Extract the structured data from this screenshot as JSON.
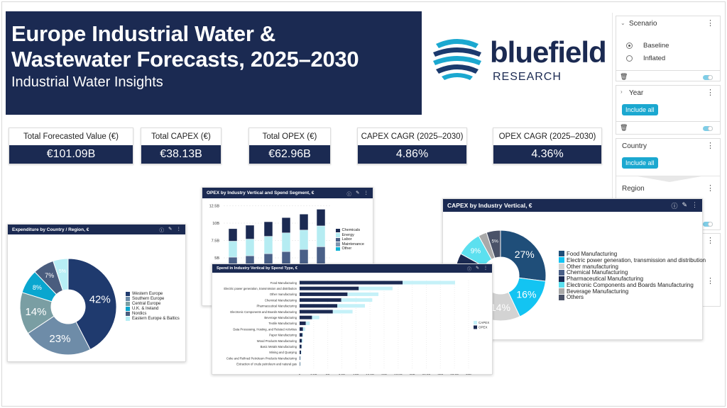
{
  "header": {
    "title_line1": "Europe Industrial Water &",
    "title_line2": "Wastewater Forecasts, 2025–2030",
    "subtitle": "Industrial Water Insights"
  },
  "logo": {
    "word": "bluefield",
    "sub": "RESEARCH"
  },
  "kpis": [
    {
      "label": "Total Forecasted Value (€)",
      "value": "€101.09B"
    },
    {
      "label": "Total CAPEX (€)",
      "value": "€38.13B"
    },
    {
      "label": "Total OPEX (€)",
      "value": "€62.96B"
    },
    {
      "label": "CAPEX CAGR (2025–2030)",
      "value": "4.86%"
    },
    {
      "label": "OPEX CAGR (2025–2030)",
      "value": "4.36%"
    }
  ],
  "filters": {
    "scenario": {
      "title": "Scenario",
      "options": [
        "Baseline",
        "Inflated"
      ],
      "selected": "Baseline"
    },
    "year": {
      "title": "Year",
      "button": "Include all"
    },
    "country": {
      "title": "Country",
      "button": "Include all"
    },
    "region": {
      "title": "Region"
    }
  },
  "colors": {
    "navy": "#1b2a52",
    "accent": "#1ba8d0"
  },
  "chart_data": [
    {
      "id": "expenditure",
      "type": "pie",
      "title": "Expenditure by Country / Region, €",
      "categories": [
        "Western Europe",
        "Southern Europe",
        "Central Europe",
        "U.K. & Ireland",
        "Nordics",
        "Eastern Europe & Baltics"
      ],
      "values": [
        42,
        23,
        14,
        8,
        7,
        5
      ],
      "labels": [
        "42%",
        "23%",
        "14%",
        "8%",
        "7%",
        "5%"
      ],
      "colors": [
        "#1f3a6e",
        "#6e8ca8",
        "#7a9ea3",
        "#0aa6cf",
        "#4a5d7e",
        "#b7eef5"
      ],
      "legend": "right"
    },
    {
      "id": "opex",
      "type": "bar",
      "stacked": true,
      "title": "OPEX by Industry Vertical and Spend Segment, €",
      "ytick_labels": [
        "5B",
        "7.5B",
        "10B",
        "12.5B"
      ],
      "ylim": [
        0,
        12.5
      ],
      "series": [
        {
          "name": "Other",
          "values": [
            1.0,
            1.0,
            1.0,
            1.0,
            1.0,
            1.0
          ],
          "color": "#10b3d6"
        },
        {
          "name": "Maintenance",
          "values": [
            2.0,
            2.0,
            2.0,
            2.0,
            2.0,
            2.0
          ],
          "color": "#7d95b0"
        },
        {
          "name": "Labor",
          "values": [
            2.1,
            2.3,
            2.6,
            2.9,
            3.2,
            3.6
          ],
          "color": "#4a6088"
        },
        {
          "name": "Energy",
          "values": [
            2.3,
            2.4,
            2.5,
            2.7,
            2.8,
            3.0
          ],
          "color": "#b5ecf2"
        },
        {
          "name": "Chemicals",
          "values": [
            1.8,
            2.0,
            2.1,
            2.2,
            2.3,
            2.4
          ],
          "color": "#1b2a52"
        }
      ],
      "legend_order": [
        "Chemicals",
        "Energy",
        "Labor",
        "Maintenance",
        "Other"
      ],
      "legend": "right"
    },
    {
      "id": "spend",
      "type": "bar",
      "orientation": "horizontal",
      "stacked": true,
      "title": "Spend in Industry Vertical by Spend Type, €",
      "categories": [
        "Food Manufacturing",
        "Electric power generation, transmission and distribution",
        "Other manufacturing",
        "Chemical Manufacturing",
        "Pharmaceutical Manufacturing",
        "Electronic Components and Boards Manufacturing",
        "Beverage Manufacturing",
        "Textile Manufacturing",
        "Data Processing, Hosting, and Related Activities",
        "Paper Manufacturing",
        "Wood Products Manufacturing",
        "Basic Metals Manufacturing",
        "Mining and Quarying",
        "Coke and Refined Petroleum Products Manufacturing",
        "Extraction of crude petroleum and natural gas"
      ],
      "series": [
        {
          "name": "OPEX",
          "values": [
            18.3,
            10.5,
            8.5,
            7.4,
            6.7,
            5.9,
            2.2,
            1.1,
            0.6,
            0.5,
            0.4,
            0.35,
            0.25,
            0.1,
            0.08
          ],
          "color": "#1b2a52"
        },
        {
          "name": "CAPEX",
          "values": [
            9.3,
            6.0,
            5.5,
            5.5,
            4.9,
            3.5,
            1.3,
            0.7,
            0.4,
            0.15,
            0.2,
            0.05,
            0.03,
            0.02,
            0.02
          ],
          "color": "#c5f1f8"
        }
      ],
      "xtick_labels": [
        "0",
        "2.5B",
        "5B",
        "7.5B",
        "10B",
        "12.5B",
        "15B",
        "17.5B",
        "20B",
        "22.5B",
        "25B",
        "27.5B",
        "30B"
      ],
      "xlim": [
        0,
        30
      ],
      "legend_order": [
        "CAPEX",
        "OPEX"
      ],
      "legend": "right",
      "grid": true
    },
    {
      "id": "capex",
      "type": "pie",
      "title": "CAPEX by Industry Vertical, €",
      "categories": [
        "Food Manufacturing",
        "Electric power generation, transmission and distribution",
        "Other manufacturing",
        "Chemical Manufacturing",
        "Pharmaceutical Manufacturing",
        "Electronic Components and Boards Manufacturing",
        "Beverage Manufacturing",
        "Others"
      ],
      "values": [
        27,
        16,
        14,
        18,
        8,
        9,
        3,
        5
      ],
      "labels": [
        "27%",
        "16%",
        "14%",
        "",
        "",
        "9%",
        "",
        "5%"
      ],
      "colors": [
        "#1f4e79",
        "#13c4f2",
        "#d3d3d3",
        "#4a6088",
        "#1b2a52",
        "#5ce0ef",
        "#a9a9a9",
        "#4a5268"
      ],
      "legend": "right"
    }
  ]
}
